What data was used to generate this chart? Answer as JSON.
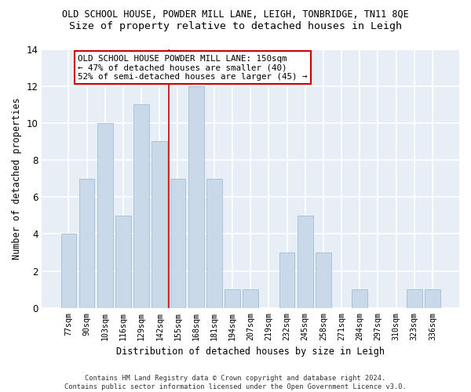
{
  "title": "OLD SCHOOL HOUSE, POWDER MILL LANE, LEIGH, TONBRIDGE, TN11 8QE",
  "subtitle": "Size of property relative to detached houses in Leigh",
  "xlabel": "Distribution of detached houses by size in Leigh",
  "ylabel": "Number of detached properties",
  "categories": [
    "77sqm",
    "90sqm",
    "103sqm",
    "116sqm",
    "129sqm",
    "142sqm",
    "155sqm",
    "168sqm",
    "181sqm",
    "194sqm",
    "207sqm",
    "219sqm",
    "232sqm",
    "245sqm",
    "258sqm",
    "271sqm",
    "284sqm",
    "297sqm",
    "310sqm",
    "323sqm",
    "336sqm"
  ],
  "values": [
    4,
    7,
    10,
    5,
    11,
    9,
    7,
    12,
    7,
    1,
    1,
    0,
    3,
    5,
    3,
    0,
    1,
    0,
    0,
    1,
    1
  ],
  "bar_color": "#c9d9ea",
  "bar_edge_color": "#9ab5cc",
  "vline_x": 5.5,
  "vline_color": "#cc0000",
  "annotation_text": "OLD SCHOOL HOUSE POWDER MILL LANE: 150sqm\n← 47% of detached houses are smaller (40)\n52% of semi-detached houses are larger (45) →",
  "annotation_box_color": "#ffffff",
  "annotation_box_edge": "#cc0000",
  "ylim": [
    0,
    14
  ],
  "yticks": [
    0,
    2,
    4,
    6,
    8,
    10,
    12,
    14
  ],
  "footer": "Contains HM Land Registry data © Crown copyright and database right 2024.\nContains public sector information licensed under the Open Government Licence v3.0.",
  "fig_bg_color": "#ffffff",
  "plot_bg_color": "#e8eef5",
  "grid_color": "#ffffff",
  "title_fontsize": 8.5,
  "subtitle_fontsize": 9.5,
  "xlabel_fontsize": 8.5,
  "ylabel_fontsize": 8.5,
  "annotation_fontsize": 7.8,
  "footer_fontsize": 6.2
}
